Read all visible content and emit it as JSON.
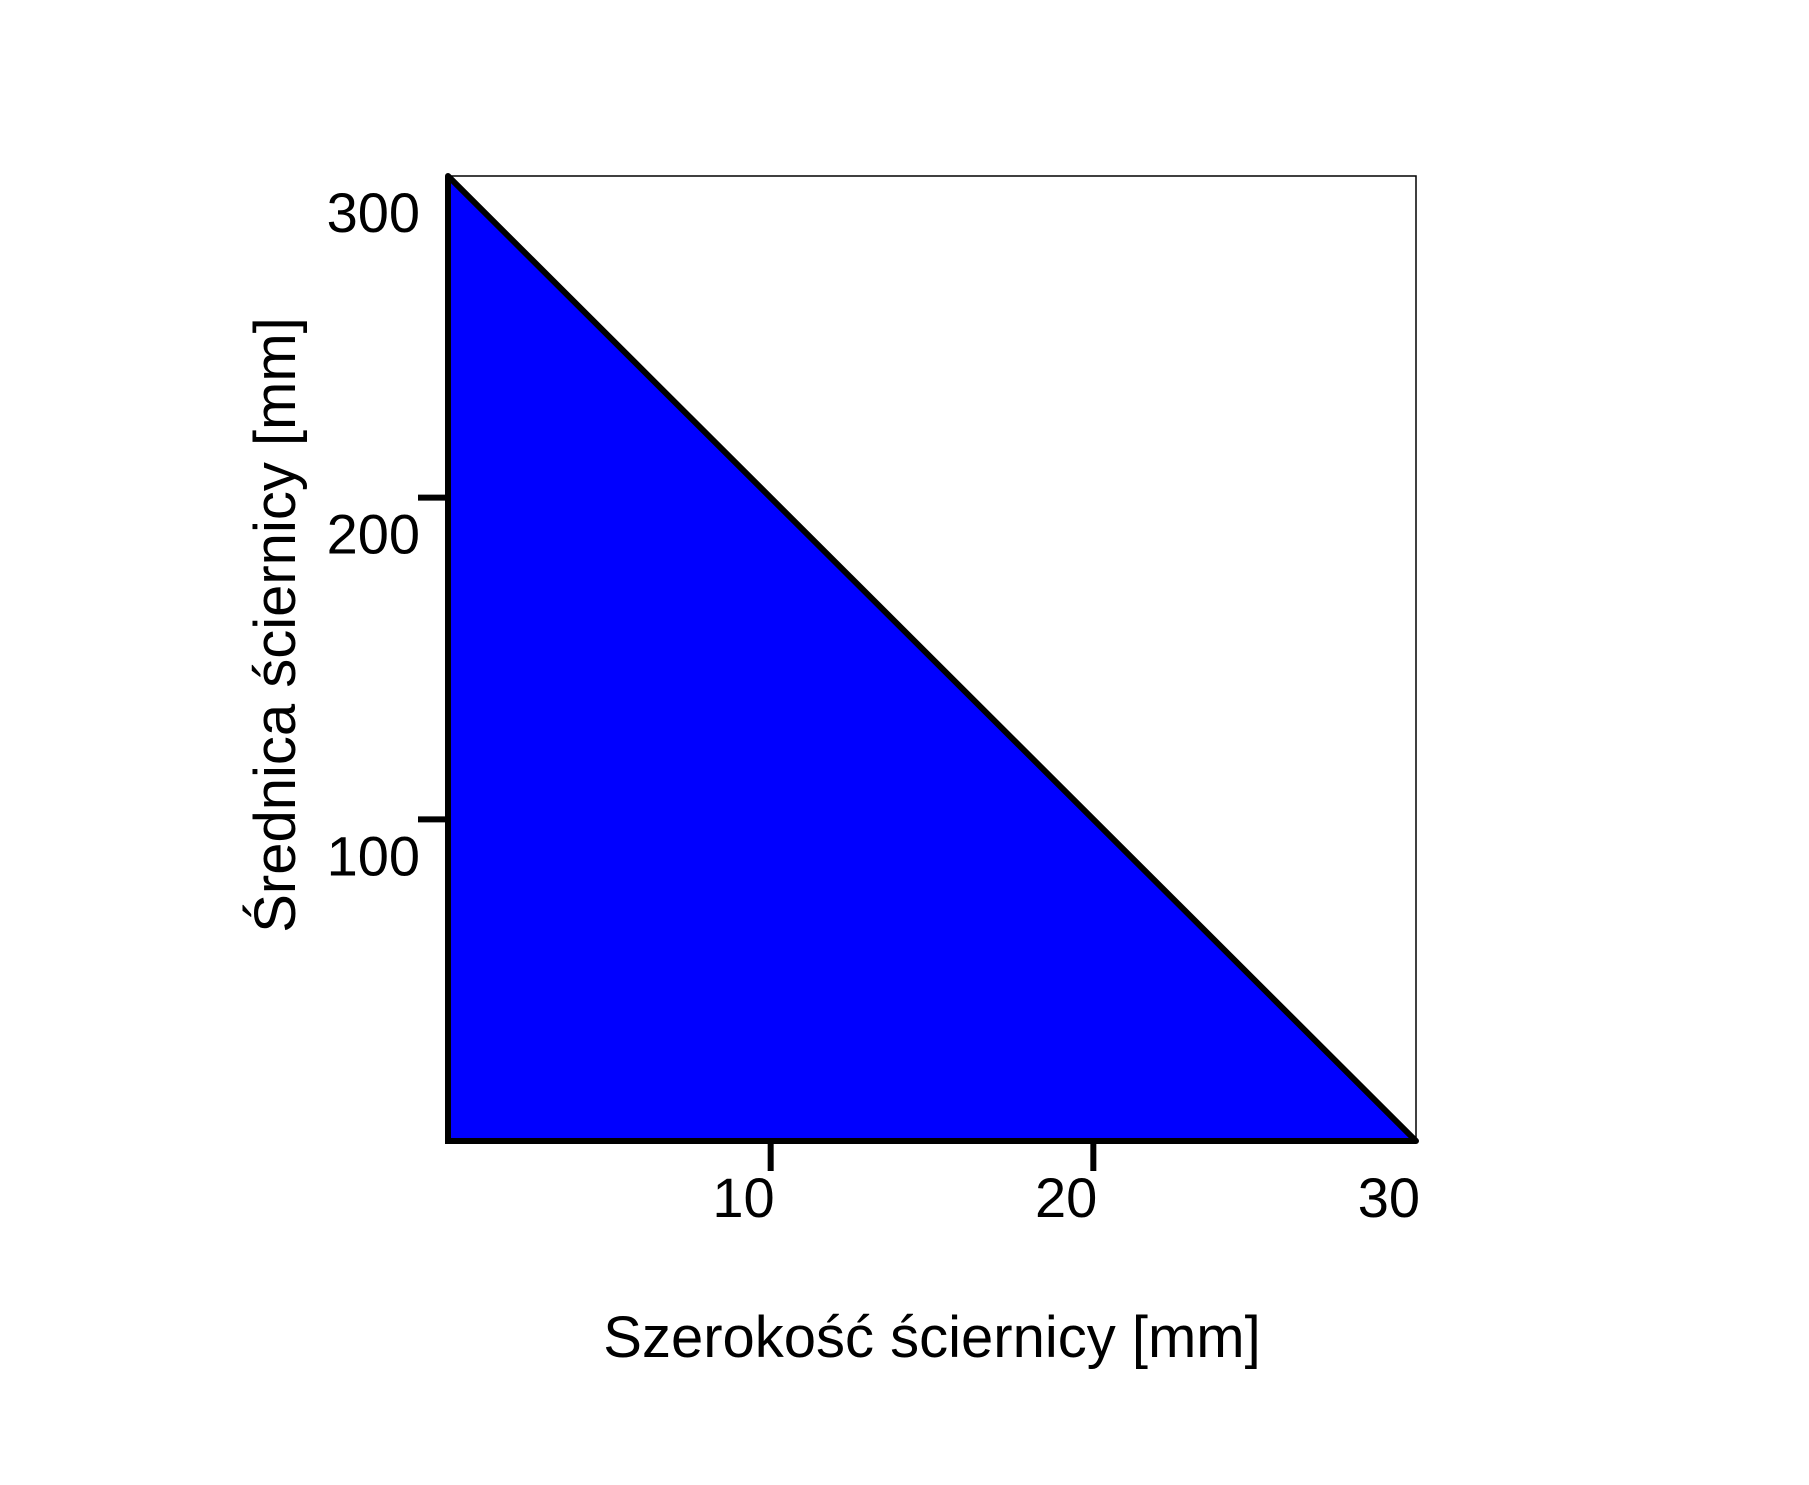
{
  "chart_data": {
    "type": "area",
    "title": "",
    "xlabel": "Szerokość ściernicy [mm]",
    "ylabel": "Średnica ściernicy [mm]",
    "xlim": [
      0,
      30
    ],
    "ylim": [
      0,
      300
    ],
    "x_ticks": [
      10,
      20,
      30
    ],
    "y_ticks": [
      100,
      200,
      300
    ],
    "grid": false,
    "legend": "none",
    "series": [
      {
        "x": [
          0,
          30
        ],
        "y": [
          300,
          0
        ],
        "fill_color": "#0000ff",
        "line_color": "#000000"
      }
    ]
  }
}
